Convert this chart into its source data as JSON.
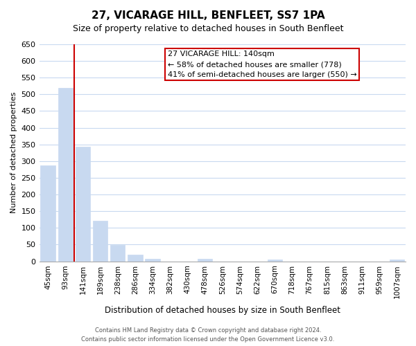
{
  "title": "27, VICARAGE HILL, BENFLEET, SS7 1PA",
  "subtitle": "Size of property relative to detached houses in South Benfleet",
  "bar_values": [
    288,
    519,
    343,
    122,
    49,
    20,
    7,
    0,
    0,
    8,
    0,
    0,
    0,
    5,
    0,
    0,
    0,
    0,
    0,
    0,
    5
  ],
  "bin_labels": [
    "45sqm",
    "93sqm",
    "141sqm",
    "189sqm",
    "238sqm",
    "286sqm",
    "334sqm",
    "382sqm",
    "430sqm",
    "478sqm",
    "526sqm",
    "574sqm",
    "622sqm",
    "670sqm",
    "718sqm",
    "767sqm",
    "815sqm",
    "863sqm",
    "911sqm",
    "959sqm",
    "1007sqm"
  ],
  "bar_color": "#c8d9f0",
  "bar_edge_color": "#c8d9f0",
  "marker_line_color": "#cc0000",
  "ylabel": "Number of detached properties",
  "xlabel": "Distribution of detached houses by size in South Benfleet",
  "ylim": [
    0,
    650
  ],
  "yticks": [
    0,
    50,
    100,
    150,
    200,
    250,
    300,
    350,
    400,
    450,
    500,
    550,
    600,
    650
  ],
  "annotation_title": "27 VICARAGE HILL: 140sqm",
  "annotation_line1": "← 58% of detached houses are smaller (778)",
  "annotation_line2": "41% of semi-detached houses are larger (550) →",
  "annotation_box_color": "#ffffff",
  "annotation_box_edge": "#cc0000",
  "footer_line1": "Contains HM Land Registry data © Crown copyright and database right 2024.",
  "footer_line2": "Contains public sector information licensed under the Open Government Licence v3.0.",
  "background_color": "#ffffff",
  "grid_color": "#c8d9f0"
}
